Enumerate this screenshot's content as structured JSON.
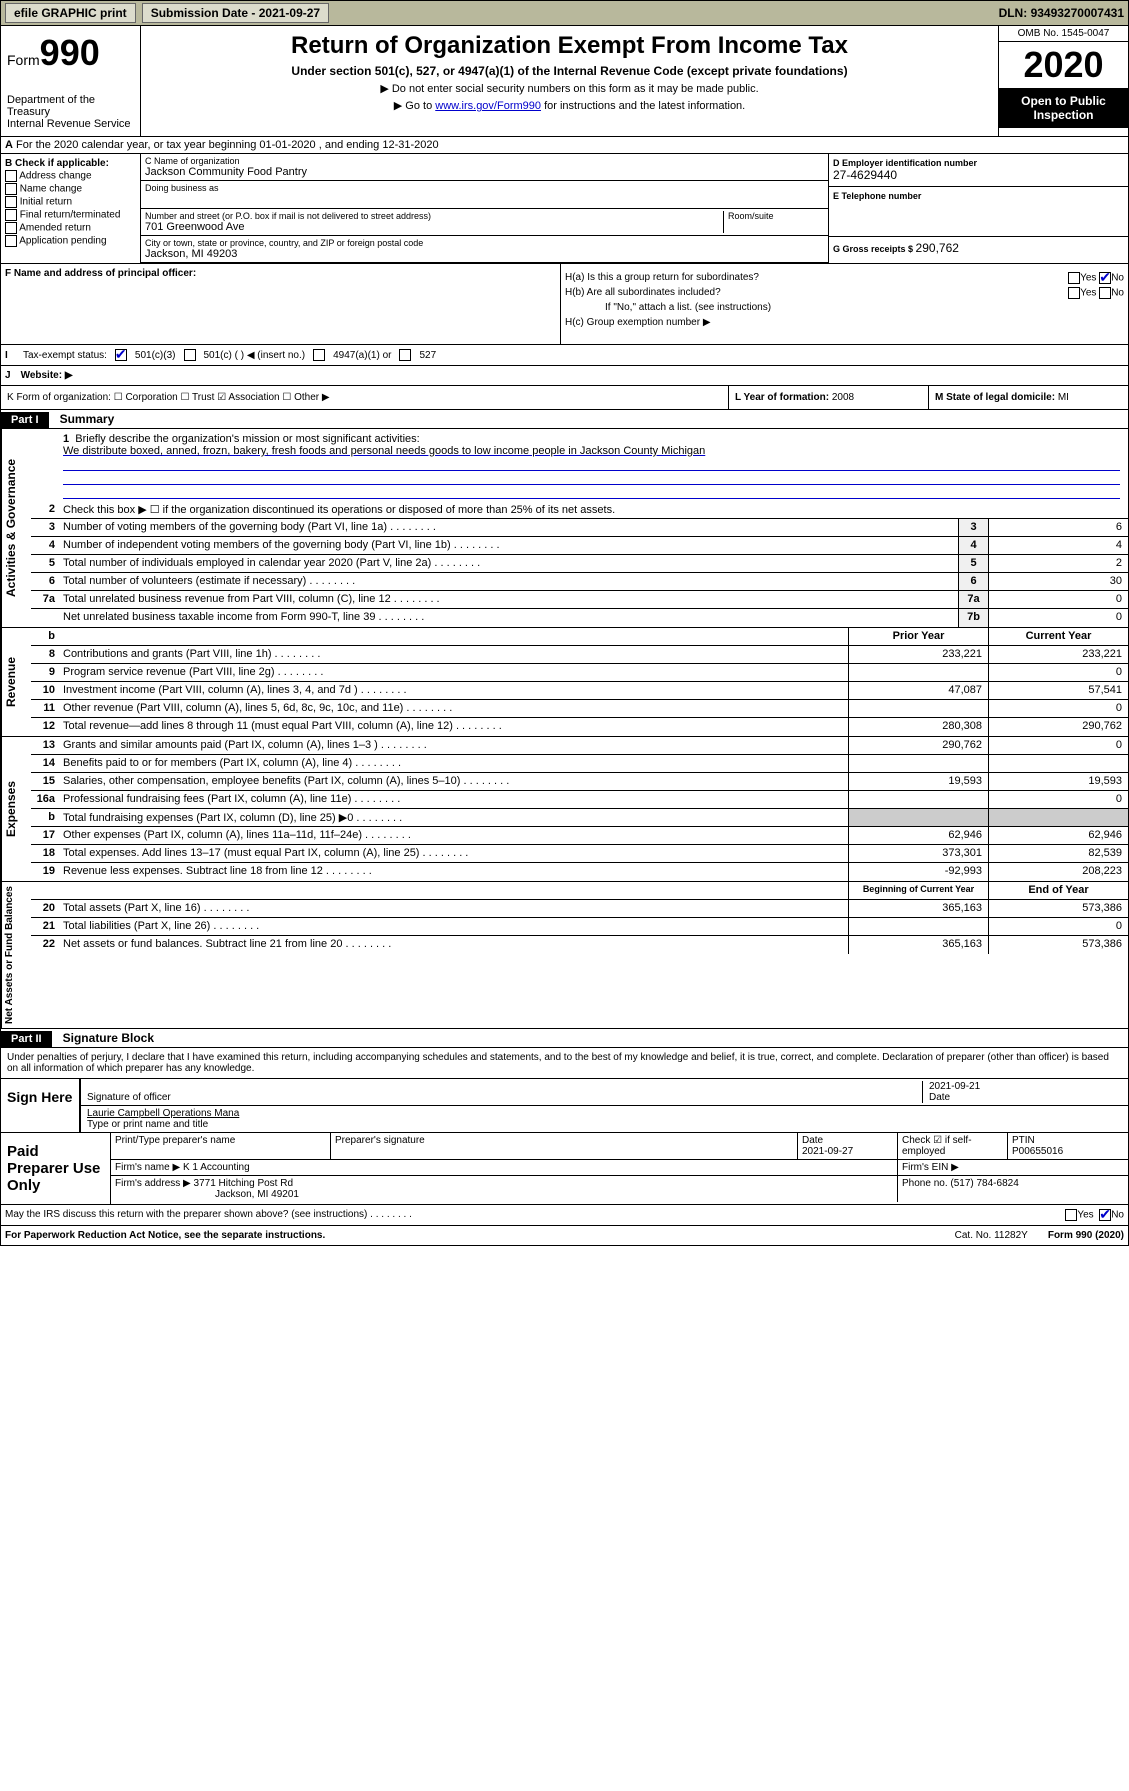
{
  "topbar": {
    "efile": "efile GRAPHIC print",
    "subdate_label": "Submission Date - ",
    "subdate": "2021-09-27",
    "dln_label": "DLN: ",
    "dln": "93493270007431"
  },
  "header": {
    "form_word": "Form",
    "form_no": "990",
    "title": "Return of Organization Exempt From Income Tax",
    "sub": "Under section 501(c), 527, or 4947(a)(1) of the Internal Revenue Code (except private foundations)",
    "note1": "▶ Do not enter social security numbers on this form as it may be made public.",
    "note2a": "▶ Go to ",
    "note2link": "www.irs.gov/Form990",
    "note2b": " for instructions and the latest information.",
    "omb": "OMB No. 1545-0047",
    "year": "2020",
    "inspect": "Open to Public Inspection",
    "dept": "Department of the Treasury\nInternal Revenue Service"
  },
  "period": {
    "text_a": "For the 2020 calendar year, or tax year beginning ",
    "begin": "01-01-2020",
    "text_b": " , and ending ",
    "end": "12-31-2020"
  },
  "box_b": {
    "label": "B Check if applicable:",
    "items": [
      "Address change",
      "Name change",
      "Initial return",
      "Final return/terminated",
      "Amended return",
      "Application pending"
    ]
  },
  "box_c": {
    "name_label": "C Name of organization",
    "name": "Jackson Community Food Pantry",
    "dba_label": "Doing business as",
    "street_label": "Number and street (or P.O. box if mail is not delivered to street address)",
    "street": "701 Greenwood Ave",
    "suite_label": "Room/suite",
    "city_label": "City or town, state or province, country, and ZIP or foreign postal code",
    "city": "Jackson, MI  49203"
  },
  "box_d": {
    "ein_label": "D Employer identification number",
    "ein": "27-4629440",
    "tel_label": "E Telephone number",
    "gross_label": "G Gross receipts $ ",
    "gross": "290,762"
  },
  "box_f": {
    "label": "F  Name and address of principal officer:"
  },
  "box_h": {
    "a_label": "H(a)  Is this a group return for subordinates?",
    "b_label": "H(b)  Are all subordinates included?",
    "b_note": "If \"No,\" attach a list. (see instructions)",
    "c_label": "H(c)  Group exemption number ▶",
    "yes": "Yes",
    "no": "No"
  },
  "status": {
    "label": "Tax-exempt status:",
    "c3": "501(c)(3)",
    "c": "501(c) (  ) ◀ (insert no.)",
    "a47": "4947(a)(1) or",
    "s527": "527"
  },
  "website": {
    "label": "Website: ▶"
  },
  "klm": {
    "k": "K Form of organization:  ☐ Corporation  ☐ Trust  ☑ Association  ☐ Other ▶",
    "l_label": "L Year of formation: ",
    "l": "2008",
    "m_label": "M State of legal domicile: ",
    "m": "MI"
  },
  "part1": {
    "hdr": "Part I",
    "title": "Summary"
  },
  "mission": {
    "num": "1",
    "label": "Briefly describe the organization's mission or most significant activities:",
    "text": "We distribute boxed, anned, frozn, bakery, fresh foods and personal needs goods to low income people in Jackson County Michigan"
  },
  "gov_lines": [
    {
      "n": "2",
      "d": "Check this box ▶ ☐  if the organization discontinued its operations or disposed of more than 25% of its net assets."
    },
    {
      "n": "3",
      "d": "Number of voting members of the governing body (Part VI, line 1a)",
      "c": "3",
      "v": "6"
    },
    {
      "n": "4",
      "d": "Number of independent voting members of the governing body (Part VI, line 1b)",
      "c": "4",
      "v": "4"
    },
    {
      "n": "5",
      "d": "Total number of individuals employed in calendar year 2020 (Part V, line 2a)",
      "c": "5",
      "v": "2"
    },
    {
      "n": "6",
      "d": "Total number of volunteers (estimate if necessary)",
      "c": "6",
      "v": "30"
    },
    {
      "n": "7a",
      "d": "Total unrelated business revenue from Part VIII, column (C), line 12",
      "c": "7a",
      "v": "0"
    },
    {
      "n": "",
      "d": "Net unrelated business taxable income from Form 990-T, line 39",
      "c": "7b",
      "v": "0"
    }
  ],
  "yr_hdr": {
    "b": "b",
    "prior": "Prior Year",
    "curr": "Current Year"
  },
  "revenue": [
    {
      "n": "8",
      "d": "Contributions and grants (Part VIII, line 1h)",
      "p": "233,221",
      "c": "233,221"
    },
    {
      "n": "9",
      "d": "Program service revenue (Part VIII, line 2g)",
      "p": "",
      "c": "0"
    },
    {
      "n": "10",
      "d": "Investment income (Part VIII, column (A), lines 3, 4, and 7d )",
      "p": "47,087",
      "c": "57,541"
    },
    {
      "n": "11",
      "d": "Other revenue (Part VIII, column (A), lines 5, 6d, 8c, 9c, 10c, and 11e)",
      "p": "",
      "c": "0"
    },
    {
      "n": "12",
      "d": "Total revenue—add lines 8 through 11 (must equal Part VIII, column (A), line 12)",
      "p": "280,308",
      "c": "290,762"
    }
  ],
  "expenses": [
    {
      "n": "13",
      "d": "Grants and similar amounts paid (Part IX, column (A), lines 1–3 )",
      "p": "290,762",
      "c": "0"
    },
    {
      "n": "14",
      "d": "Benefits paid to or for members (Part IX, column (A), line 4)",
      "p": "",
      "c": ""
    },
    {
      "n": "15",
      "d": "Salaries, other compensation, employee benefits (Part IX, column (A), lines 5–10)",
      "p": "19,593",
      "c": "19,593"
    },
    {
      "n": "16a",
      "d": "Professional fundraising fees (Part IX, column (A), line 11e)",
      "p": "",
      "c": "0"
    },
    {
      "n": "b",
      "d": "Total fundraising expenses (Part IX, column (D), line 25) ▶0",
      "p": "GRAY",
      "c": "GRAY"
    },
    {
      "n": "17",
      "d": "Other expenses (Part IX, column (A), lines 11a–11d, 11f–24e)",
      "p": "62,946",
      "c": "62,946"
    },
    {
      "n": "18",
      "d": "Total expenses. Add lines 13–17 (must equal Part IX, column (A), line 25)",
      "p": "373,301",
      "c": "82,539"
    },
    {
      "n": "19",
      "d": "Revenue less expenses. Subtract line 18 from line 12",
      "p": "-92,993",
      "c": "208,223"
    }
  ],
  "na_hdr": {
    "begin": "Beginning of Current Year",
    "end": "End of Year"
  },
  "netassets": [
    {
      "n": "20",
      "d": "Total assets (Part X, line 16)",
      "p": "365,163",
      "c": "573,386"
    },
    {
      "n": "21",
      "d": "Total liabilities (Part X, line 26)",
      "p": "",
      "c": "0"
    },
    {
      "n": "22",
      "d": "Net assets or fund balances. Subtract line 21 from line 20",
      "p": "365,163",
      "c": "573,386"
    }
  ],
  "side_labels": {
    "gov": "Activities & Governance",
    "rev": "Revenue",
    "exp": "Expenses",
    "na": "Net Assets or Fund Balances"
  },
  "part2": {
    "hdr": "Part II",
    "title": "Signature Block"
  },
  "perjury": "Under penalties of perjury, I declare that I have examined this return, including accompanying schedules and statements, and to the best of my knowledge and belief, it is true, correct, and complete. Declaration of preparer (other than officer) is based on all information of which preparer has any knowledge.",
  "sign": {
    "left": "Sign Here",
    "sig_label": "Signature of officer",
    "date": "2021-09-21",
    "date_label": "Date",
    "name": "Laurie Campbell  Operations Mana",
    "name_label": "Type or print name and title"
  },
  "prep": {
    "left": "Paid Preparer Use Only",
    "h1": "Print/Type preparer's name",
    "h2": "Preparer's signature",
    "h3_label": "Date",
    "h3": "2021-09-27",
    "h4": "Check ☑ if self-employed",
    "h5_label": "PTIN",
    "h5": "P00655016",
    "firm_label": "Firm's name   ▶ ",
    "firm": "K 1 Accounting",
    "ein_label": "Firm's EIN ▶",
    "addr_label": "Firm's address ▶ ",
    "addr1": "3771 Hitching Post Rd",
    "addr2": "Jackson, MI  49201",
    "phone_label": "Phone no. ",
    "phone": "(517) 784-6824"
  },
  "discuss": {
    "text": "May the IRS discuss this return with the preparer shown above? (see instructions)",
    "yes": "Yes",
    "no": "No"
  },
  "foot": {
    "left": "For Paperwork Reduction Act Notice, see the separate instructions.",
    "mid": "Cat. No. 11282Y",
    "right": "Form 990 (2020)"
  }
}
